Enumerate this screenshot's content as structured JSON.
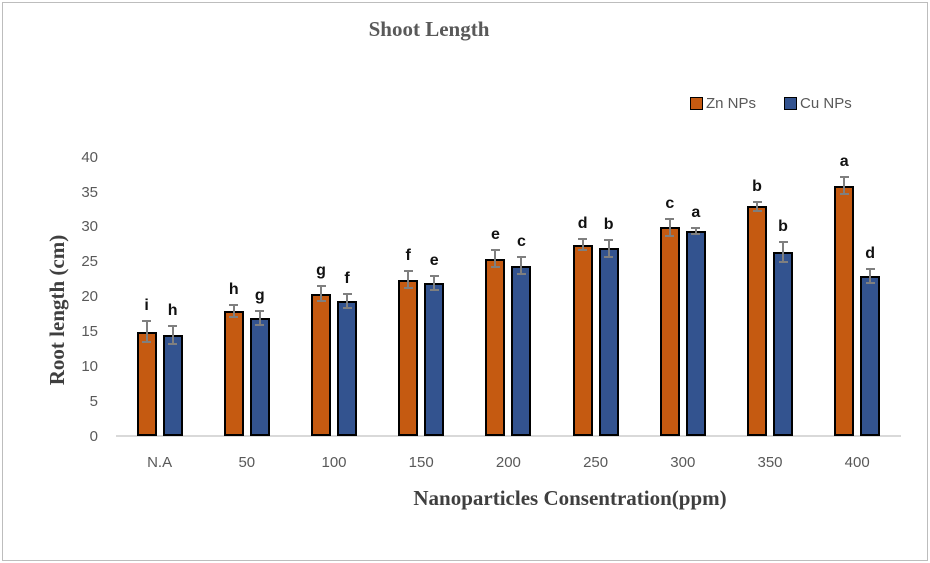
{
  "title": "Shoot Length",
  "y_axis_title": "Root length (cm)",
  "x_axis_title": "Nanoparticles Consentration(ppm)",
  "legend": {
    "position": "top-right",
    "items": [
      {
        "label": "Zn NPs",
        "color": "#C55A11"
      },
      {
        "label": "Cu NPs",
        "color": "#33538F"
      }
    ]
  },
  "chart_data": {
    "type": "bar",
    "title": "Shoot Length",
    "xlabel": "Nanoparticles Consentration(ppm)",
    "ylabel": "Root length (cm)",
    "ylim": [
      0,
      40
    ],
    "yticks": [
      0,
      5,
      10,
      15,
      20,
      25,
      30,
      35,
      40
    ],
    "grid": false,
    "legend_position": "top-right",
    "categories": [
      "N.A",
      "50",
      "100",
      "150",
      "200",
      "250",
      "300",
      "350",
      "400"
    ],
    "series": [
      {
        "name": "Zn NPs",
        "color": "#C55A11",
        "values": [
          15,
          18,
          20.5,
          22.5,
          25.5,
          27.5,
          30,
          33,
          36
        ],
        "errors": [
          1.5,
          0.9,
          1.1,
          1.2,
          1.2,
          0.8,
          1.2,
          0.7,
          1.2
        ],
        "letters": [
          "i",
          "h",
          "g",
          "f",
          "e",
          "d",
          "c",
          "b",
          "a"
        ]
      },
      {
        "name": "Cu NPs",
        "color": "#33538F",
        "values": [
          14.5,
          17,
          19.5,
          22,
          24.5,
          27,
          29.5,
          26.5,
          23
        ],
        "errors": [
          1.3,
          1.0,
          1.0,
          1.0,
          1.2,
          1.2,
          0.4,
          1.4,
          1.0
        ],
        "letters": [
          "h",
          "g",
          "f",
          "e",
          "c",
          "b",
          "a",
          "b",
          "d"
        ]
      }
    ],
    "colors": {
      "error_bar": "#7F7F7F",
      "axis_line": "#D9D9D9",
      "tick_text": "#595959",
      "letter_text": "#111111"
    }
  }
}
